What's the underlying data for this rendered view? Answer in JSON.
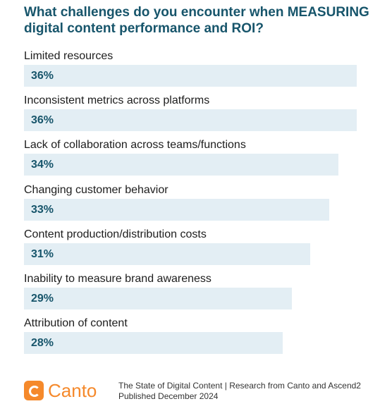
{
  "chart_data": {
    "type": "bar",
    "orientation": "horizontal",
    "title": "What challenges do you encounter when MEASURING digital content performance and ROI?",
    "categories": [
      "Limited resources",
      "Inconsistent metrics across platforms",
      "Lack of collaboration across teams/functions",
      "Changing customer behavior",
      "Content production/distribution costs",
      "Inability to measure brand awareness",
      "Attribution of content"
    ],
    "values": [
      36,
      36,
      34,
      33,
      31,
      29,
      28
    ],
    "value_labels": [
      "36%",
      "36%",
      "34%",
      "33%",
      "31%",
      "29%",
      "28%"
    ],
    "xlim": [
      0,
      36
    ],
    "value_suffix": "%",
    "grid": false,
    "legend": "none",
    "bar_color": "#e3eef4",
    "value_color": "#17556b"
  },
  "footer": {
    "brand": "Canto",
    "brand_color": "#f5892b",
    "line1": "The State of Digital Content  |  Research from Canto and Ascend2",
    "line2": "Published December 2024"
  }
}
